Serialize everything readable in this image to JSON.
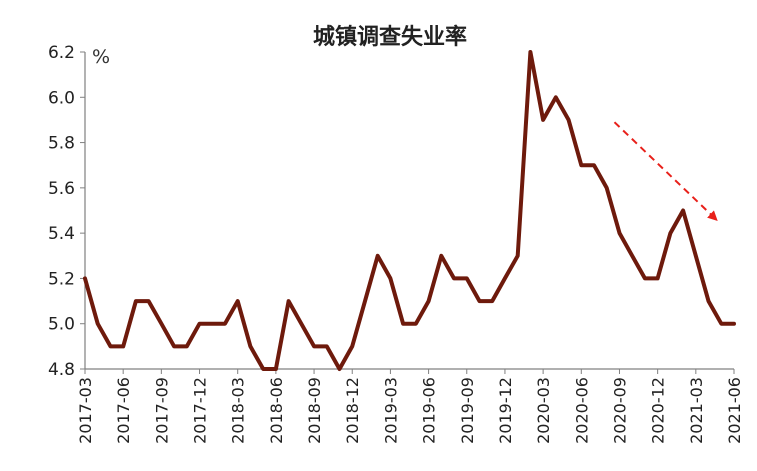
{
  "chart_data": {
    "type": "line",
    "title": "城镇调查失业率",
    "unit_label": "%",
    "ylim": [
      4.8,
      6.2
    ],
    "yticks": [
      "4.8",
      "5.0",
      "5.2",
      "5.4",
      "5.6",
      "5.8",
      "6.0",
      "6.2"
    ],
    "grid": false,
    "x": [
      "2017-03",
      "2017-04",
      "2017-05",
      "2017-06",
      "2017-07",
      "2017-08",
      "2017-09",
      "2017-10",
      "2017-11",
      "2017-12",
      "2018-01",
      "2018-02",
      "2018-03",
      "2018-04",
      "2018-05",
      "2018-06",
      "2018-07",
      "2018-08",
      "2018-09",
      "2018-10",
      "2018-11",
      "2018-12",
      "2019-01",
      "2019-02",
      "2019-03",
      "2019-04",
      "2019-05",
      "2019-06",
      "2019-07",
      "2019-08",
      "2019-09",
      "2019-10",
      "2019-11",
      "2019-12",
      "2020-01",
      "2020-02",
      "2020-03",
      "2020-04",
      "2020-05",
      "2020-06",
      "2020-07",
      "2020-08",
      "2020-09",
      "2020-10",
      "2020-11",
      "2020-12",
      "2021-01",
      "2021-02",
      "2021-03",
      "2021-04",
      "2021-05",
      "2021-06"
    ],
    "xtick_labels": [
      "2017-03",
      "2017-06",
      "2017-09",
      "2017-12",
      "2018-03",
      "2018-06",
      "2018-09",
      "2018-12",
      "2019-03",
      "2019-06",
      "2019-09",
      "2019-12",
      "2020-03",
      "2020-06",
      "2020-09",
      "2020-12",
      "2021-03",
      "2021-06"
    ],
    "series": [
      {
        "values": [
          5.2,
          5.0,
          4.9,
          4.9,
          5.1,
          5.1,
          5.0,
          4.9,
          4.9,
          5.0,
          5.0,
          5.0,
          5.1,
          4.9,
          4.8,
          4.8,
          5.1,
          5.0,
          4.9,
          4.9,
          4.8,
          4.9,
          5.1,
          5.3,
          5.2,
          5.0,
          5.0,
          5.1,
          5.3,
          5.2,
          5.2,
          5.1,
          5.1,
          5.2,
          5.3,
          6.2,
          5.9,
          6.0,
          5.9,
          5.7,
          5.7,
          5.6,
          5.4,
          5.3,
          5.2,
          5.2,
          5.4,
          5.5,
          5.3,
          5.1,
          5.0,
          5.0
        ]
      }
    ],
    "annotation": {
      "type": "trend-arrow",
      "direction": "down"
    },
    "colors": {
      "line": "#6E1A0C",
      "arrow": "#E8201A",
      "axis": "#808080",
      "text": "#222222"
    }
  }
}
